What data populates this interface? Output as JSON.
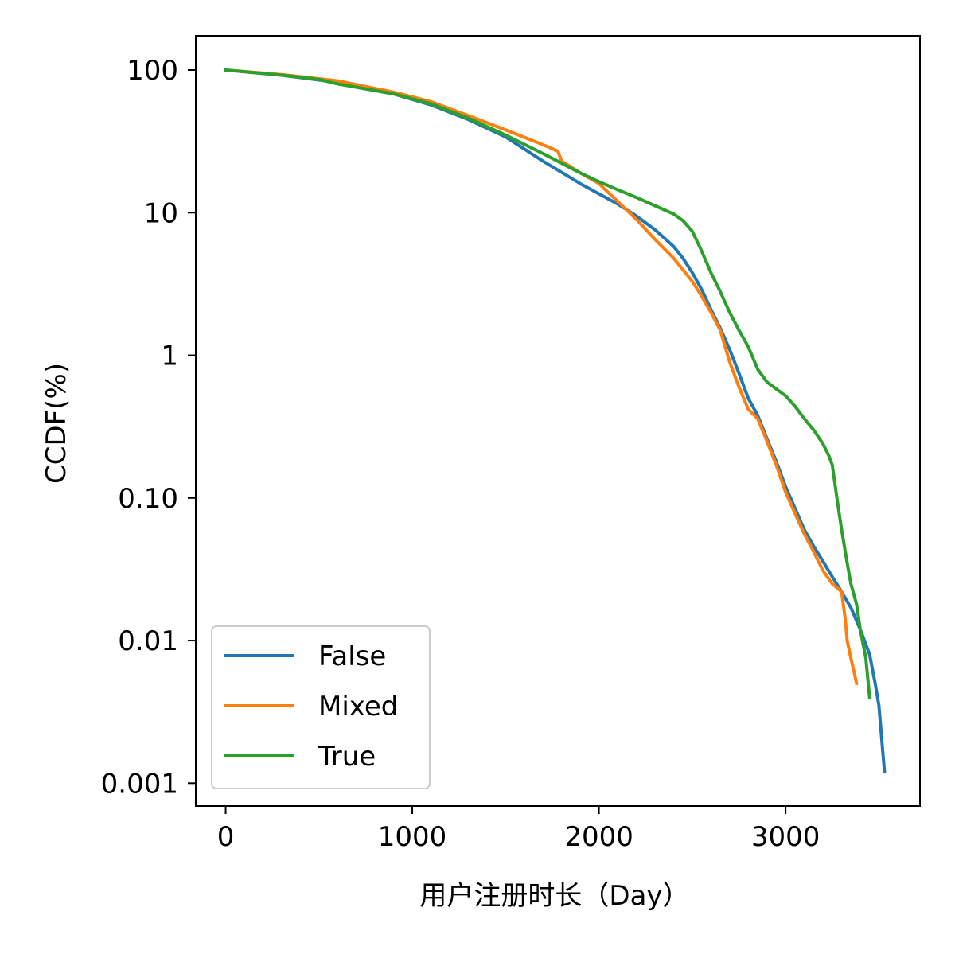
{
  "chart_data": {
    "type": "line",
    "title": "",
    "xlabel": "用户注册时长（Day）",
    "ylabel": "CCDF(%)",
    "xlim": [
      -160,
      3720
    ],
    "ylim_log10": [
      -3.16,
      2.24
    ],
    "y_scale": "log",
    "grid": false,
    "legend_position": "lower-left",
    "x_ticks": [
      0,
      1000,
      2000,
      3000
    ],
    "x_tick_labels": [
      "0",
      "1000",
      "2000",
      "3000"
    ],
    "y_ticks": [
      100,
      10,
      1,
      0.1,
      0.01,
      0.001
    ],
    "y_tick_labels": [
      "100",
      "10",
      "1",
      "0.10",
      "0.01",
      "0.001"
    ],
    "series": [
      {
        "name": "False",
        "color": "#1f77b4",
        "points": [
          [
            0,
            100
          ],
          [
            300,
            92
          ],
          [
            600,
            82
          ],
          [
            900,
            68
          ],
          [
            1100,
            57
          ],
          [
            1300,
            45
          ],
          [
            1500,
            34
          ],
          [
            1700,
            23
          ],
          [
            1900,
            16
          ],
          [
            2100,
            11.5
          ],
          [
            2200,
            9.5
          ],
          [
            2300,
            7.6
          ],
          [
            2400,
            5.8
          ],
          [
            2450,
            4.8
          ],
          [
            2500,
            3.8
          ],
          [
            2550,
            2.9
          ],
          [
            2600,
            2.1
          ],
          [
            2650,
            1.55
          ],
          [
            2700,
            1.1
          ],
          [
            2750,
            0.75
          ],
          [
            2800,
            0.5
          ],
          [
            2850,
            0.38
          ],
          [
            2900,
            0.26
          ],
          [
            2950,
            0.18
          ],
          [
            3000,
            0.12
          ],
          [
            3050,
            0.085
          ],
          [
            3100,
            0.06
          ],
          [
            3150,
            0.046
          ],
          [
            3200,
            0.036
          ],
          [
            3250,
            0.028
          ],
          [
            3300,
            0.022
          ],
          [
            3350,
            0.017
          ],
          [
            3400,
            0.012
          ],
          [
            3450,
            0.008
          ],
          [
            3480,
            0.005
          ],
          [
            3500,
            0.0035
          ],
          [
            3520,
            0.0017
          ],
          [
            3530,
            0.0012
          ]
        ]
      },
      {
        "name": "Mixed",
        "color": "#ff7f0e",
        "points": [
          [
            0,
            100
          ],
          [
            300,
            93
          ],
          [
            600,
            84
          ],
          [
            900,
            70
          ],
          [
            1100,
            60
          ],
          [
            1300,
            48
          ],
          [
            1500,
            38
          ],
          [
            1700,
            30
          ],
          [
            1780,
            27
          ],
          [
            1800,
            23
          ],
          [
            1900,
            19
          ],
          [
            2000,
            16
          ],
          [
            2100,
            12
          ],
          [
            2200,
            9
          ],
          [
            2300,
            6.5
          ],
          [
            2400,
            4.8
          ],
          [
            2500,
            3.3
          ],
          [
            2550,
            2.6
          ],
          [
            2600,
            2.0
          ],
          [
            2650,
            1.5
          ],
          [
            2700,
            0.9
          ],
          [
            2750,
            0.6
          ],
          [
            2800,
            0.42
          ],
          [
            2850,
            0.36
          ],
          [
            2900,
            0.25
          ],
          [
            2950,
            0.17
          ],
          [
            3000,
            0.11
          ],
          [
            3050,
            0.078
          ],
          [
            3100,
            0.056
          ],
          [
            3150,
            0.042
          ],
          [
            3200,
            0.031
          ],
          [
            3250,
            0.025
          ],
          [
            3300,
            0.022
          ],
          [
            3320,
            0.014
          ],
          [
            3330,
            0.01
          ],
          [
            3350,
            0.0075
          ],
          [
            3370,
            0.0058
          ],
          [
            3380,
            0.005
          ]
        ]
      },
      {
        "name": "True",
        "color": "#2ca02c",
        "points": [
          [
            0,
            100
          ],
          [
            300,
            92
          ],
          [
            500,
            86
          ],
          [
            600,
            80
          ],
          [
            900,
            68
          ],
          [
            1100,
            58
          ],
          [
            1300,
            46
          ],
          [
            1500,
            35
          ],
          [
            1700,
            26
          ],
          [
            1900,
            19
          ],
          [
            2000,
            16.5
          ],
          [
            2100,
            14.5
          ],
          [
            2200,
            12.8
          ],
          [
            2300,
            11.2
          ],
          [
            2400,
            9.8
          ],
          [
            2450,
            8.8
          ],
          [
            2500,
            7.4
          ],
          [
            2550,
            5.4
          ],
          [
            2600,
            3.8
          ],
          [
            2650,
            2.8
          ],
          [
            2700,
            2.0
          ],
          [
            2750,
            1.5
          ],
          [
            2800,
            1.15
          ],
          [
            2850,
            0.8
          ],
          [
            2900,
            0.65
          ],
          [
            2950,
            0.58
          ],
          [
            3000,
            0.52
          ],
          [
            3050,
            0.44
          ],
          [
            3100,
            0.36
          ],
          [
            3150,
            0.3
          ],
          [
            3200,
            0.24
          ],
          [
            3230,
            0.2
          ],
          [
            3250,
            0.17
          ],
          [
            3280,
            0.09
          ],
          [
            3300,
            0.06
          ],
          [
            3330,
            0.035
          ],
          [
            3350,
            0.025
          ],
          [
            3380,
            0.018
          ],
          [
            3400,
            0.012
          ],
          [
            3430,
            0.0075
          ],
          [
            3450,
            0.004
          ]
        ]
      }
    ]
  }
}
